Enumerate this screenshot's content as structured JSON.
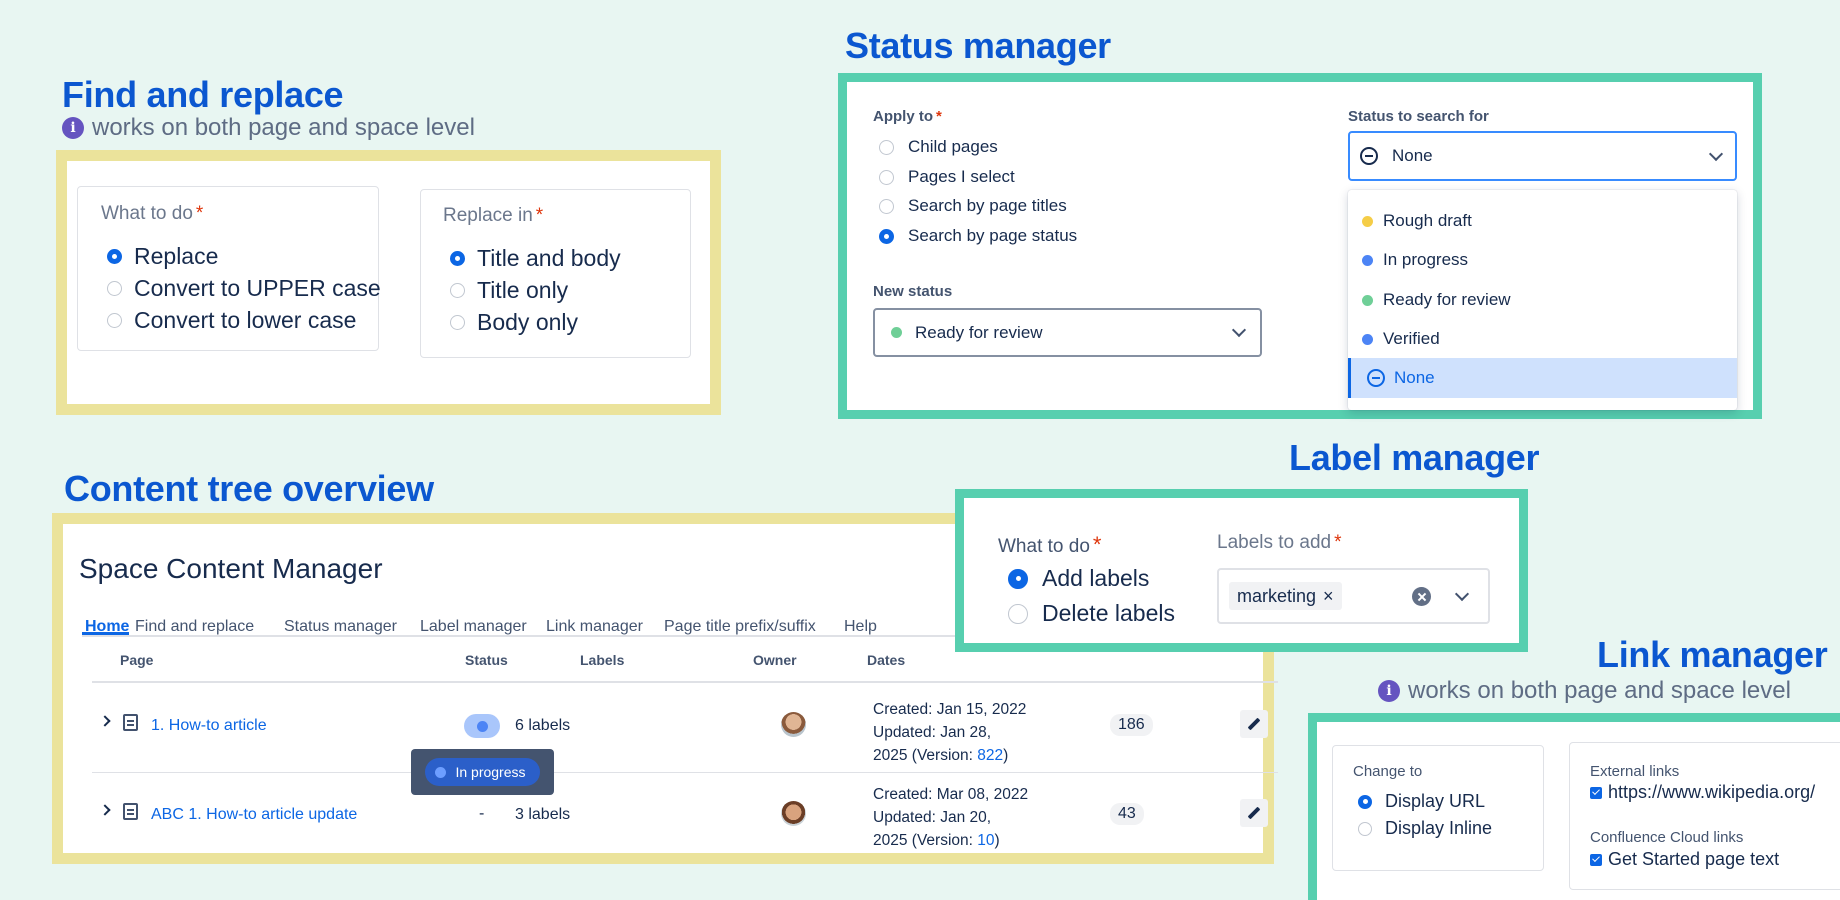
{
  "find_replace": {
    "heading": "Find and replace",
    "info_icon": "i",
    "note": "works on both page and space level",
    "what_to_do_label": "What to do",
    "required_mark": "*",
    "what_options": [
      "Replace",
      "Convert to UPPER case",
      "Convert to lower case"
    ],
    "what_selected": "Replace",
    "replace_in_label": "Replace in",
    "replace_options": [
      "Title and body",
      "Title only",
      "Body only"
    ],
    "replace_selected": "Title and body"
  },
  "status_manager": {
    "heading": "Status manager",
    "apply_to_label": "Apply to",
    "required_mark": "*",
    "apply_options": [
      "Child pages",
      "Pages I select",
      "Search by page titles",
      "Search by page status"
    ],
    "apply_selected": "Search by page status",
    "new_status_label": "New status",
    "new_status_value": "Ready for review",
    "new_status_color": "#6fcf97",
    "search_label": "Status to search for",
    "search_value": "None",
    "dropdown_items": [
      {
        "label": "Rough draft",
        "color": "#f5cd47"
      },
      {
        "label": "In progress",
        "color": "#4c84f5"
      },
      {
        "label": "Ready for review",
        "color": "#6fcf97"
      },
      {
        "label": "Verified",
        "color": "#4c84f5"
      },
      {
        "label": "None",
        "icon": "none-circle-icon"
      }
    ]
  },
  "label_manager": {
    "heading": "Label manager",
    "what_to_do_label": "What to do",
    "required_mark": "*",
    "options": [
      "Add labels",
      "Delete labels"
    ],
    "selected": "Add labels",
    "labels_label": "Labels to add",
    "tag": "marketing",
    "tag_remove": "×"
  },
  "content_tree": {
    "heading": "Content tree overview",
    "app_title": "Space Content Manager",
    "tabs": [
      "Home",
      "Find and replace",
      "Status manager",
      "Label manager",
      "Link manager",
      "Page title prefix/suffix",
      "Help"
    ],
    "active_tab": "Home",
    "columns": {
      "page": "Page",
      "status": "Status",
      "labels": "Labels",
      "owner": "Owner",
      "dates": "Dates"
    },
    "rows": [
      {
        "title": "1. How-to article",
        "status": "",
        "labels": "6 labels",
        "created": "Created: Jan 15, 2022",
        "updated": "Updated: Jan 28,",
        "version_prefix": "2025 (Version: ",
        "version": "822",
        "version_suffix": ")",
        "count": "186"
      },
      {
        "title": "ABC 1. How-to article update",
        "status": "-",
        "labels": "3 labels",
        "created": "Created: Mar 08, 2022",
        "updated": "Updated: Jan 20,",
        "version_prefix": "2025 (Version: ",
        "version": "10",
        "version_suffix": ")",
        "count": "43"
      }
    ],
    "tooltip": "In progress",
    "status_color": "#4c84f5"
  },
  "link_manager": {
    "heading": "Link manager",
    "info_icon": "i",
    "note": "works on both page and space level",
    "change_to_label": "Change to",
    "options": [
      "Display URL",
      "Display Inline"
    ],
    "selected": "Display URL",
    "external_label": "External links",
    "external_value": "https://www.wikipedia.org/",
    "confluence_label": "Confluence Cloud links",
    "confluence_value": "Get Started page text"
  }
}
